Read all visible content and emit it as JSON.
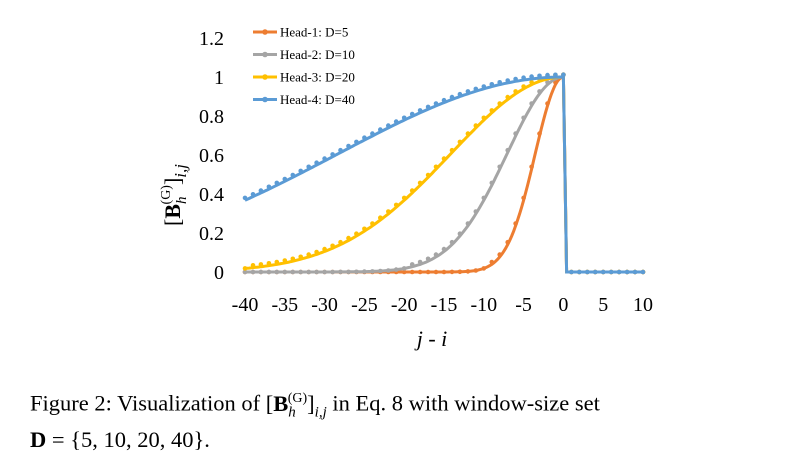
{
  "chart_data": {
    "type": "line",
    "title": "",
    "xlabel": "j - i",
    "ylabel": "[B_h^(G)]_{i,j}",
    "xlim": [
      -40,
      10
    ],
    "ylim": [
      0,
      1.2
    ],
    "x_ticks": [
      "-40",
      "-35",
      "-30",
      "-25",
      "-20",
      "-15",
      "-10",
      "-5",
      "0",
      "5",
      "10"
    ],
    "y_ticks": [
      "0",
      "0.2",
      "0.4",
      "0.6",
      "0.8",
      "1",
      "1.2"
    ],
    "grid": false,
    "legend_position": "top-left",
    "series": [
      {
        "name": "Head-1: D=5",
        "D": 5,
        "color": "#ed7d31"
      },
      {
        "name": "Head-2: D=10",
        "D": 10,
        "color": "#a5a5a5"
      },
      {
        "name": "Head-3: D=20",
        "D": 20,
        "color": "#ffc000"
      },
      {
        "name": "Head-4: D=40",
        "D": 40,
        "color": "#5b9bd5"
      }
    ],
    "curve_formula": "y = exp(-((j-i)/D)^2) for j-i <= 0; y = 0 for j-i > 0"
  },
  "caption": {
    "prefix": "Figure 2: Visualization of",
    "suffix": "in Eq. 8 with window-size set",
    "line2": "= {5, 10, 20, 40}."
  }
}
